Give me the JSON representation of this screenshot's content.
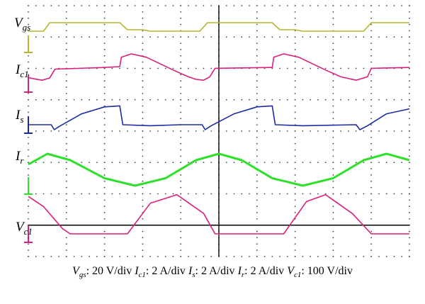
{
  "chart_data": {
    "type": "line",
    "title": "",
    "grid": true,
    "divisions": {
      "x": 10,
      "y": 8
    },
    "time_axis": "relative time in divisions (0–10), unlabeled",
    "channel_labels": [
      {
        "main": "V",
        "sub": "gs"
      },
      {
        "main": "I",
        "sub": "c1"
      },
      {
        "main": "I",
        "sub": "s"
      },
      {
        "main": "I",
        "sub": "r"
      },
      {
        "main": "V",
        "sub": "c1"
      }
    ],
    "series": [
      {
        "name": "Vgs",
        "color": "#b8b52e",
        "points": [
          [
            0,
            0.9
          ],
          [
            0.2,
            0.9
          ],
          [
            0.28,
            1.5
          ],
          [
            1.0,
            1.5
          ],
          [
            1.2,
            1.5
          ],
          [
            1.3,
            1.0
          ],
          [
            1.5,
            1.0
          ],
          [
            1.6,
            0.9
          ],
          [
            2.25,
            0.9
          ],
          [
            2.35,
            1.5
          ],
          [
            3.2,
            1.5
          ],
          [
            3.3,
            1.0
          ],
          [
            3.5,
            1.0
          ],
          [
            3.6,
            0.9
          ],
          [
            4.4,
            0.9
          ],
          [
            4.5,
            1.5
          ],
          [
            5,
            1.5
          ]
        ]
      },
      {
        "name": "Ic1",
        "color": "#d8207a",
        "points": [
          [
            0,
            0.35
          ],
          [
            0.08,
            0.28
          ],
          [
            0.18,
            0.2
          ],
          [
            0.28,
            0.33
          ],
          [
            0.35,
            0.85
          ],
          [
            1.0,
            0.95
          ],
          [
            1.2,
            1.0
          ],
          [
            1.22,
            1.55
          ],
          [
            1.35,
            1.75
          ],
          [
            1.55,
            1.55
          ],
          [
            1.9,
            0.8
          ],
          [
            2.1,
            0.4
          ],
          [
            2.2,
            0.25
          ],
          [
            2.3,
            0.2
          ],
          [
            2.38,
            0.4
          ],
          [
            2.45,
            0.9
          ],
          [
            3.2,
            0.95
          ],
          [
            3.22,
            1.55
          ],
          [
            3.35,
            1.75
          ],
          [
            3.55,
            1.55
          ],
          [
            3.9,
            0.8
          ],
          [
            4.1,
            0.4
          ],
          [
            4.3,
            0.2
          ],
          [
            4.45,
            0.4
          ],
          [
            4.5,
            0.9
          ],
          [
            5,
            0.95
          ]
        ]
      },
      {
        "name": "Is",
        "color": "#1c2aa5",
        "points": [
          [
            0,
            0.0
          ],
          [
            0.3,
            0.0
          ],
          [
            0.34,
            -0.25
          ],
          [
            0.4,
            -0.1
          ],
          [
            0.7,
            0.55
          ],
          [
            1.0,
            0.9
          ],
          [
            1.2,
            0.95
          ],
          [
            1.24,
            0.0
          ],
          [
            1.6,
            -0.05
          ],
          [
            2.0,
            0.0
          ],
          [
            2.28,
            0.0
          ],
          [
            2.32,
            -0.25
          ],
          [
            2.4,
            -0.05
          ],
          [
            2.7,
            0.55
          ],
          [
            3.0,
            0.9
          ],
          [
            3.2,
            0.95
          ],
          [
            3.24,
            0.0
          ],
          [
            3.6,
            -0.05
          ],
          [
            4.3,
            0.0
          ],
          [
            4.35,
            -0.25
          ],
          [
            4.45,
            -0.05
          ],
          [
            4.7,
            0.55
          ],
          [
            5,
            0.8
          ]
        ]
      },
      {
        "name": "Ir",
        "color": "#2ee02a",
        "points": [
          [
            0,
            1.0
          ],
          [
            0.25,
            1.5
          ],
          [
            0.55,
            1.2
          ],
          [
            1.0,
            0.35
          ],
          [
            1.4,
            0.0
          ],
          [
            1.8,
            0.35
          ],
          [
            2.2,
            1.2
          ],
          [
            2.5,
            1.5
          ],
          [
            2.8,
            1.2
          ],
          [
            3.2,
            0.35
          ],
          [
            3.6,
            0.0
          ],
          [
            4.0,
            0.35
          ],
          [
            4.4,
            1.2
          ],
          [
            4.7,
            1.5
          ],
          [
            5,
            1.2
          ]
        ]
      },
      {
        "name": "Vc1",
        "color": "#d8207a",
        "points": [
          [
            0,
            2.2
          ],
          [
            0.2,
            1.6
          ],
          [
            0.45,
            0.3
          ],
          [
            0.55,
            0.0
          ],
          [
            1.2,
            0.0
          ],
          [
            1.3,
            0.0
          ],
          [
            1.6,
            1.8
          ],
          [
            1.95,
            2.3
          ],
          [
            2.3,
            1.2
          ],
          [
            2.45,
            0.0
          ],
          [
            3.3,
            0.0
          ],
          [
            3.35,
            0.0
          ],
          [
            3.65,
            1.9
          ],
          [
            3.9,
            2.3
          ],
          [
            4.25,
            1.2
          ],
          [
            4.5,
            0.0
          ],
          [
            5,
            0.0
          ]
        ]
      }
    ]
  },
  "caption": {
    "parts": [
      {
        "var": "V",
        "sub": "gs",
        "text": ": 20 V/div "
      },
      {
        "var": "I",
        "sub": "c1",
        "text": ": 2 A/div "
      },
      {
        "var": "I",
        "sub": "s",
        "text": ": 2 A/div "
      },
      {
        "var": "I",
        "sub": "r",
        "text": ": 2 A/div "
      },
      {
        "var": "V",
        "sub": "c1",
        "text": ": 100 V/div"
      }
    ]
  }
}
